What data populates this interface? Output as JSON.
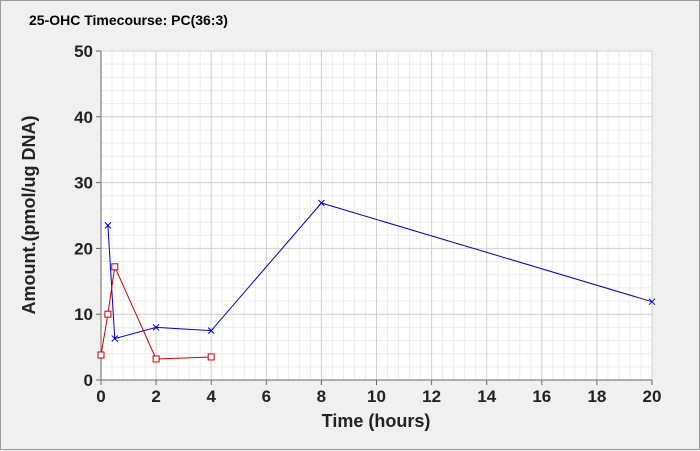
{
  "chart_data": {
    "type": "line",
    "title": "25-OHC Timecourse: PC(36:3)",
    "xlabel": "Time (hours)",
    "ylabel": "Amount.(pmol/ug DNA)",
    "xlim": [
      0,
      20
    ],
    "ylim": [
      0,
      50
    ],
    "x_ticks": [
      0,
      2,
      4,
      6,
      8,
      10,
      12,
      14,
      16,
      18,
      20
    ],
    "y_ticks": [
      0,
      10,
      20,
      30,
      40,
      50
    ],
    "grid": true,
    "series": [
      {
        "color": "#0000cc",
        "marker": "x",
        "x": [
          0.25,
          0.5,
          2,
          4,
          8,
          20
        ],
        "y": [
          23.5,
          6.3,
          8.0,
          7.5,
          26.9,
          11.9
        ]
      },
      {
        "color": "#cc0000",
        "marker": "square",
        "x": [
          0,
          0.25,
          0.5,
          2,
          4
        ],
        "y": [
          3.8,
          10.0,
          17.2,
          3.2,
          3.5
        ]
      }
    ]
  }
}
